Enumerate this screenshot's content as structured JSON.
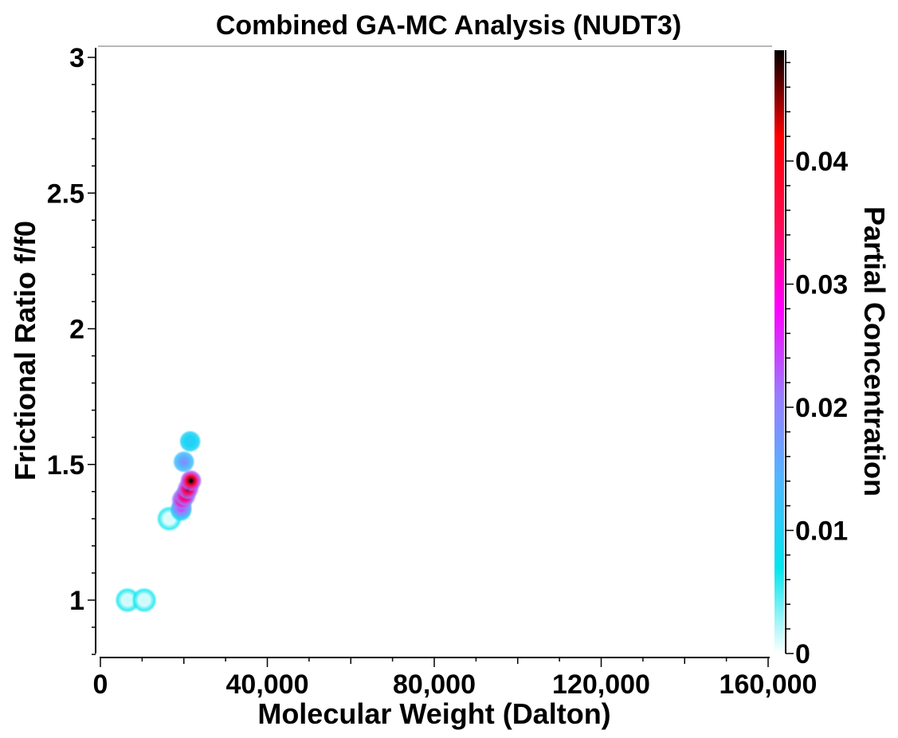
{
  "chart_data": {
    "type": "heatmap",
    "title": "Combined GA-MC Analysis (NUDT3)",
    "xlabel": "Molecular Weight (Dalton)",
    "ylabel": "Frictional Ratio f/f0",
    "xlim": [
      0,
      160000
    ],
    "ylim": [
      0.8,
      3.05
    ],
    "x_ticks": [
      0,
      40000,
      80000,
      120000,
      160000
    ],
    "x_tick_labels": [
      "0",
      "40,000",
      "80,000",
      "120,000",
      "160,000"
    ],
    "y_ticks": [
      1,
      1.5,
      2,
      2.5,
      3
    ],
    "y_tick_labels": [
      "1",
      "1.5",
      "2",
      "2.5",
      "3"
    ],
    "colorbar": {
      "label": "Partial Concentration",
      "range": [
        0,
        0.049
      ],
      "ticks": [
        0,
        0.01,
        0.02,
        0.03,
        0.04
      ],
      "tick_labels": [
        "0",
        "0.01",
        "0.02",
        "0.03",
        "0.04"
      ],
      "colors": [
        "#ffffff",
        "#00e5ee",
        "#4fb8ff",
        "#9a7cff",
        "#ff00ff",
        "#ff0a50",
        "#ff0000",
        "#000000"
      ]
    },
    "points": [
      {
        "mw": 6500,
        "ff0": 1.0,
        "conc": 0.0015
      },
      {
        "mw": 10500,
        "ff0": 1.0,
        "conc": 0.0015
      },
      {
        "mw": 16500,
        "ff0": 1.3,
        "conc": 0.0012
      },
      {
        "mw": 21500,
        "ff0": 1.585,
        "conc": 0.012
      },
      {
        "mw": 20000,
        "ff0": 1.51,
        "conc": 0.02
      },
      {
        "mw": 21700,
        "ff0": 1.44,
        "conc": 0.049
      },
      {
        "mw": 21000,
        "ff0": 1.41,
        "conc": 0.045
      },
      {
        "mw": 20300,
        "ff0": 1.385,
        "conc": 0.043
      },
      {
        "mw": 19600,
        "ff0": 1.37,
        "conc": 0.042
      },
      {
        "mw": 19400,
        "ff0": 1.34,
        "conc": 0.028
      },
      {
        "mw": 19300,
        "ff0": 1.33,
        "conc": 0.01
      }
    ]
  }
}
